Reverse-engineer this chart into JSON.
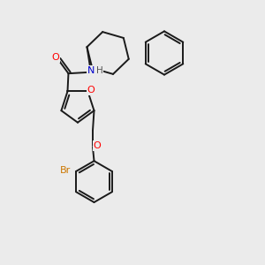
{
  "bg_color": "#ebebeb",
  "bond_color": "#1a1a1a",
  "o_color": "#ff0000",
  "n_color": "#0000cc",
  "br_color": "#cc7700",
  "h_color": "#555555",
  "linewidth": 1.4,
  "figsize": [
    3.0,
    3.0
  ],
  "dpi": 100,
  "xlim": [
    0,
    10
  ],
  "ylim": [
    0,
    10
  ]
}
